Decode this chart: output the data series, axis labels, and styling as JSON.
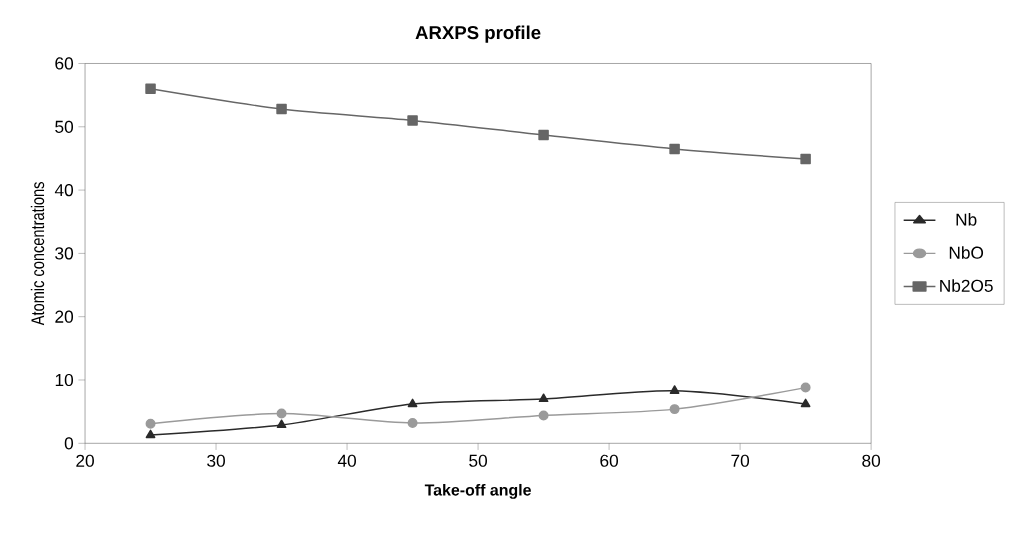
{
  "chart_data": {
    "type": "line",
    "title": "ARXPS profile",
    "xlabel": "Take-off angle",
    "ylabel": "Atomic concentrations",
    "x": [
      25,
      35,
      45,
      55,
      65,
      75
    ],
    "series": [
      {
        "name": "Nb",
        "color": "#2a2a2a",
        "marker": "triangle",
        "values": [
          1.3,
          2.9,
          6.2,
          7.0,
          8.3,
          6.2
        ]
      },
      {
        "name": "NbO",
        "color": "#9a9a9a",
        "marker": "circle",
        "values": [
          3.1,
          4.7,
          3.2,
          4.4,
          5.4,
          8.8
        ]
      },
      {
        "name": "Nb2O5",
        "color": "#666666",
        "marker": "square",
        "values": [
          56.0,
          52.8,
          51.0,
          48.7,
          46.5,
          44.9
        ]
      }
    ],
    "xlim": [
      20,
      80
    ],
    "xticks": [
      20,
      30,
      40,
      50,
      60,
      70,
      80
    ],
    "ylim": [
      0,
      60
    ],
    "yticks": [
      0,
      10,
      20,
      30,
      40,
      50,
      60
    ],
    "grid": false,
    "legend": "right"
  }
}
